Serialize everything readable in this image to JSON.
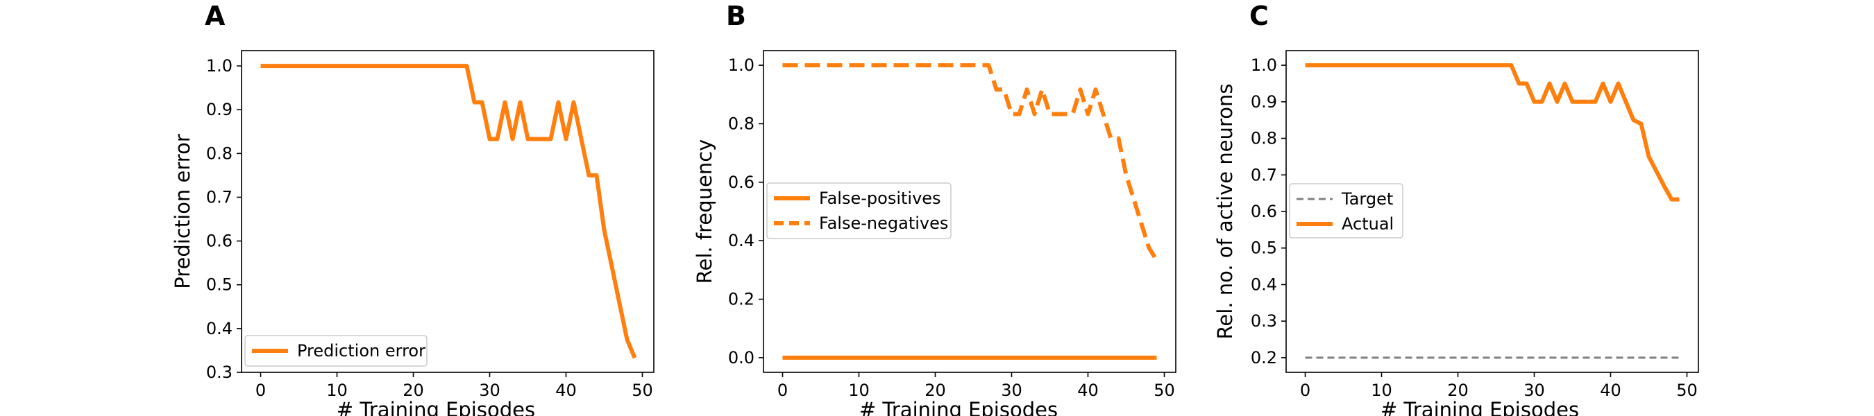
{
  "chart_data": [
    {
      "type": "line",
      "panel_letter": "A",
      "xlabel": "# Training Episodes",
      "ylabel": "Prediction error",
      "xlim": [
        -2.5,
        51.5
      ],
      "ylim": [
        0.3,
        1.035
      ],
      "xticks": [
        0,
        10,
        20,
        30,
        40,
        50
      ],
      "yticks": [
        0.3,
        0.4,
        0.5,
        0.6,
        0.7,
        0.8,
        0.9,
        1.0
      ],
      "ytick_labels": [
        "0.3",
        "0.4",
        "0.5",
        "0.6",
        "0.7",
        "0.8",
        "0.9",
        "1.0"
      ],
      "grid": false,
      "legend_position": "lower-left",
      "series": [
        {
          "name": "Prediction error",
          "color": "#ff7f0e",
          "linestyle": "solid",
          "x": [
            0,
            1,
            2,
            3,
            4,
            5,
            6,
            7,
            8,
            9,
            10,
            11,
            12,
            13,
            14,
            15,
            16,
            17,
            18,
            19,
            20,
            21,
            22,
            23,
            24,
            25,
            26,
            27,
            28,
            29,
            30,
            31,
            32,
            33,
            34,
            35,
            36,
            37,
            38,
            39,
            40,
            41,
            42,
            43,
            44,
            45,
            46,
            47,
            48,
            49
          ],
          "y": [
            1,
            1,
            1,
            1,
            1,
            1,
            1,
            1,
            1,
            1,
            1,
            1,
            1,
            1,
            1,
            1,
            1,
            1,
            1,
            1,
            1,
            1,
            1,
            1,
            1,
            1,
            1,
            1,
            0.917,
            0.917,
            0.833,
            0.833,
            0.917,
            0.833,
            0.917,
            0.833,
            0.833,
            0.833,
            0.833,
            0.917,
            0.833,
            0.917,
            0.833,
            0.75,
            0.75,
            0.625,
            0.542,
            0.458,
            0.375,
            0.333
          ]
        }
      ]
    },
    {
      "type": "line",
      "panel_letter": "B",
      "xlabel": "# Training Episodes",
      "ylabel": "Rel. frequency",
      "xlim": [
        -2.5,
        51.5
      ],
      "ylim": [
        -0.05,
        1.05
      ],
      "xticks": [
        0,
        10,
        20,
        30,
        40,
        50
      ],
      "yticks": [
        0.0,
        0.2,
        0.4,
        0.6,
        0.8,
        1.0
      ],
      "ytick_labels": [
        "0.0",
        "0.2",
        "0.4",
        "0.6",
        "0.8",
        "1.0"
      ],
      "grid": false,
      "legend_position": "center-left",
      "series": [
        {
          "name": "False-positives",
          "color": "#ff7f0e",
          "linestyle": "solid",
          "x": [
            0,
            49
          ],
          "y": [
            0,
            0
          ]
        },
        {
          "name": "False-negatives",
          "color": "#ff7f0e",
          "linestyle": "dashed",
          "x": [
            0,
            1,
            2,
            3,
            4,
            5,
            6,
            7,
            8,
            9,
            10,
            11,
            12,
            13,
            14,
            15,
            16,
            17,
            18,
            19,
            20,
            21,
            22,
            23,
            24,
            25,
            26,
            27,
            28,
            29,
            30,
            31,
            32,
            33,
            34,
            35,
            36,
            37,
            38,
            39,
            40,
            41,
            42,
            43,
            44,
            45,
            46,
            47,
            48,
            49
          ],
          "y": [
            1,
            1,
            1,
            1,
            1,
            1,
            1,
            1,
            1,
            1,
            1,
            1,
            1,
            1,
            1,
            1,
            1,
            1,
            1,
            1,
            1,
            1,
            1,
            1,
            1,
            1,
            1,
            1,
            0.917,
            0.917,
            0.833,
            0.833,
            0.917,
            0.833,
            0.917,
            0.833,
            0.833,
            0.833,
            0.833,
            0.917,
            0.833,
            0.917,
            0.833,
            0.75,
            0.75,
            0.625,
            0.542,
            0.458,
            0.375,
            0.333
          ]
        }
      ]
    },
    {
      "type": "line",
      "panel_letter": "C",
      "xlabel": "# Training Episodes",
      "ylabel": "Rel. no. of active neurons",
      "xlim": [
        -2.5,
        51.5
      ],
      "ylim": [
        0.16,
        1.04
      ],
      "xticks": [
        0,
        10,
        20,
        30,
        40,
        50
      ],
      "yticks": [
        0.2,
        0.3,
        0.4,
        0.5,
        0.6,
        0.7,
        0.8,
        0.9,
        1.0
      ],
      "ytick_labels": [
        "0.2",
        "0.3",
        "0.4",
        "0.5",
        "0.6",
        "0.7",
        "0.8",
        "0.9",
        "1.0"
      ],
      "grid": false,
      "legend_position": "center-left",
      "series": [
        {
          "name": "Target",
          "color": "#808080",
          "linestyle": "dashed",
          "x": [
            0,
            49
          ],
          "y": [
            0.2,
            0.2
          ]
        },
        {
          "name": "Actual",
          "color": "#ff7f0e",
          "linestyle": "solid",
          "x": [
            0,
            1,
            2,
            3,
            4,
            5,
            6,
            7,
            8,
            9,
            10,
            11,
            12,
            13,
            14,
            15,
            16,
            17,
            18,
            19,
            20,
            21,
            22,
            23,
            24,
            25,
            26,
            27,
            28,
            29,
            30,
            31,
            32,
            33,
            34,
            35,
            36,
            37,
            38,
            39,
            40,
            41,
            42,
            43,
            44,
            45,
            46,
            47,
            48,
            49
          ],
          "y": [
            1,
            1,
            1,
            1,
            1,
            1,
            1,
            1,
            1,
            1,
            1,
            1,
            1,
            1,
            1,
            1,
            1,
            1,
            1,
            1,
            1,
            1,
            1,
            1,
            1,
            1,
            1,
            1,
            0.95,
            0.95,
            0.9,
            0.9,
            0.95,
            0.9,
            0.95,
            0.9,
            0.9,
            0.9,
            0.9,
            0.95,
            0.9,
            0.95,
            0.9,
            0.85,
            0.84,
            0.75,
            0.71,
            0.67,
            0.633,
            0.633
          ]
        }
      ]
    }
  ]
}
